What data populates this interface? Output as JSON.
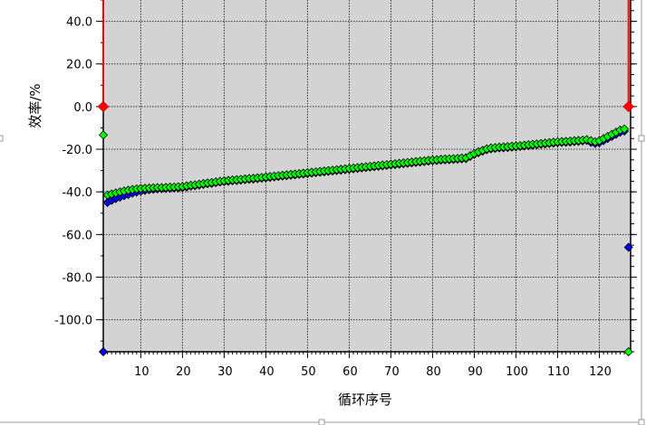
{
  "chart_data": {
    "type": "scatter",
    "title": "",
    "xlabel": "循环序号",
    "ylabel": "效率/%",
    "xlim": [
      1,
      127.5
    ],
    "ylim": [
      -115,
      50
    ],
    "grid": true,
    "x_ticks": [
      "10",
      "20",
      "30",
      "40",
      "50",
      "60",
      "70",
      "80",
      "90",
      "100",
      "110",
      "120"
    ],
    "y_ticks": [
      "40.0",
      "20.0",
      "0.0",
      "-20.0",
      "-40.0",
      "-60.0",
      "-80.0",
      "-100.0"
    ],
    "legend": "none",
    "plot_background": "#d3d3d3",
    "series": [
      {
        "color": "#0000ff",
        "x_start": 1,
        "values": [
          -115,
          -45.0,
          -44.0,
          -43.2,
          -42.5,
          -41.8,
          -41.2,
          -40.6,
          -40.1,
          -39.7,
          -39.3,
          -39.0,
          -38.8,
          -38.6,
          -38.5,
          -38.4,
          -38.3,
          -38.2,
          -38.1,
          -38.0,
          -37.7,
          -37.3,
          -37.1,
          -36.8,
          -36.5,
          -36.2,
          -36.0,
          -35.7,
          -35.4,
          -35.2,
          -35.0,
          -34.8,
          -34.7,
          -34.5,
          -34.3,
          -34.1,
          -34.0,
          -33.8,
          -33.6,
          -33.4,
          -33.2,
          -33.0,
          -32.8,
          -32.6,
          -32.4,
          -32.2,
          -32.0,
          -31.8,
          -31.6,
          -31.4,
          -31.2,
          -31.0,
          -30.8,
          -30.6,
          -30.4,
          -30.2,
          -30.0,
          -29.8,
          -29.6,
          -29.4,
          -29.2,
          -29.0,
          -28.8,
          -28.6,
          -28.4,
          -28.2,
          -28.0,
          -27.8,
          -27.6,
          -27.4,
          -27.2,
          -27.0,
          -26.8,
          -26.6,
          -26.4,
          -26.2,
          -26.0,
          -25.8,
          -25.6,
          -25.4,
          -25.3,
          -25.1,
          -25.0,
          -24.9,
          -24.8,
          -24.7,
          -24.5,
          -24.4,
          -23.4,
          -22.4,
          -21.6,
          -20.9,
          -20.2,
          -19.8,
          -19.6,
          -19.4,
          -19.3,
          -19.2,
          -19.0,
          -18.9,
          -18.7,
          -18.5,
          -18.3,
          -18.1,
          -17.9,
          -17.7,
          -17.5,
          -17.3,
          -17.1,
          -16.9,
          -16.8,
          -16.7,
          -16.6,
          -16.4,
          -16.3,
          -16.1,
          -15.9,
          -16.8,
          -17.3,
          -16.9,
          -16.0,
          -15.0,
          -14.0,
          -13.0,
          -12.0,
          -11.5,
          -66.0
        ]
      },
      {
        "color": "#00ff00",
        "x_start": 1,
        "values": [
          -13.3,
          -41.5,
          -41.0,
          -40.5,
          -40.0,
          -39.6,
          -39.2,
          -38.9,
          -38.6,
          -38.4,
          -38.3,
          -38.2,
          -38.1,
          -38.0,
          -38.0,
          -37.9,
          -37.8,
          -37.7,
          -37.6,
          -37.5,
          -37.2,
          -36.9,
          -36.7,
          -36.4,
          -36.1,
          -35.8,
          -35.6,
          -35.3,
          -35.0,
          -34.8,
          -34.6,
          -34.4,
          -34.3,
          -34.1,
          -33.9,
          -33.7,
          -33.6,
          -33.4,
          -33.2,
          -33.0,
          -32.8,
          -32.6,
          -32.4,
          -32.2,
          -32.0,
          -31.8,
          -31.6,
          -31.4,
          -31.2,
          -31.0,
          -30.8,
          -30.6,
          -30.4,
          -30.2,
          -30.0,
          -29.8,
          -29.6,
          -29.4,
          -29.2,
          -29.0,
          -28.8,
          -28.6,
          -28.4,
          -28.2,
          -28.0,
          -27.8,
          -27.6,
          -27.4,
          -27.2,
          -27.0,
          -26.8,
          -26.6,
          -26.4,
          -26.2,
          -26.0,
          -25.8,
          -25.6,
          -25.4,
          -25.2,
          -25.0,
          -24.9,
          -24.7,
          -24.6,
          -24.5,
          -24.4,
          -24.3,
          -24.1,
          -24.0,
          -23.0,
          -22.0,
          -21.2,
          -20.5,
          -19.8,
          -19.4,
          -19.2,
          -19.0,
          -18.9,
          -18.8,
          -18.6,
          -18.5,
          -18.3,
          -18.1,
          -17.9,
          -17.7,
          -17.5,
          -17.3,
          -17.1,
          -16.9,
          -16.7,
          -16.5,
          -16.4,
          -16.3,
          -16.2,
          -16.0,
          -15.9,
          -15.7,
          -15.5,
          -16.0,
          -16.5,
          -16.0,
          -15.0,
          -14.0,
          -13.0,
          -12.0,
          -11.0,
          -10.5,
          -115
        ]
      },
      {
        "color": "#ff0000",
        "x": [
          1,
          127
        ],
        "values": [
          0,
          0
        ],
        "note_shape": "drop-line-to-top"
      }
    ]
  }
}
